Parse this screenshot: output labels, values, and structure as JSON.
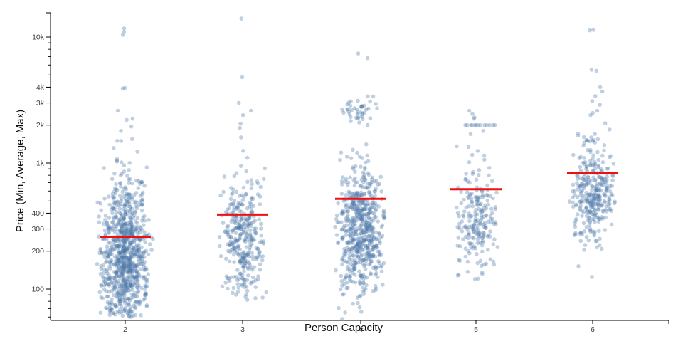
{
  "figure": {
    "background": "#ffffff"
  },
  "chart_data": {
    "type": "scatter",
    "variant": "jittered strip plot with mean rule per category",
    "title": "",
    "xlabel": "Person Capacity",
    "ylabel": "Price (Min, Average, Max)",
    "x_categories": [
      "2",
      "3",
      "4",
      "5",
      "6"
    ],
    "y_scale": "log",
    "y_domain": [
      55,
      15500
    ],
    "grid": false,
    "legend": "none",
    "point_color": "#4c78a8",
    "point_opacity": 0.35,
    "mean_line_color": "#ee1111",
    "axis_color": "#000000",
    "y_ticks": [
      {
        "value": 10000,
        "label": "10k"
      },
      {
        "value": 4000,
        "label": "4k"
      },
      {
        "value": 3000,
        "label": "3k"
      },
      {
        "value": 2000,
        "label": "2k"
      },
      {
        "value": 1000,
        "label": "1k"
      },
      {
        "value": 400,
        "label": "400"
      },
      {
        "value": 300,
        "label": "300"
      },
      {
        "value": 200,
        "label": "200"
      },
      {
        "value": 100,
        "label": "100"
      }
    ],
    "y_minor_ticks": [
      9000,
      8000,
      7000,
      6000,
      5000,
      900,
      800,
      700,
      600,
      500,
      90,
      80,
      70,
      60
    ],
    "averages": {
      "2": 260,
      "3": 390,
      "4": 520,
      "5": 620,
      "6": 830
    },
    "groups": [
      {
        "capacity": "2",
        "count": 880,
        "avg": 260,
        "approx_min": 60,
        "approx_max": 11700,
        "log_mean": 2.26,
        "log_sd": 0.295,
        "clamp": [
          60,
          1700
        ],
        "jitter_half": 40,
        "outliers": [
          11700,
          11000,
          10400,
          3950,
          3900,
          2600,
          2250,
          2200,
          1950,
          1800,
          1550,
          1500
        ],
        "band": null,
        "row_2000": 0
      },
      {
        "capacity": "3",
        "count": 335,
        "avg": 390,
        "approx_min": 80,
        "approx_max": 14000,
        "log_mean": 2.41,
        "log_sd": 0.235,
        "clamp": [
          80,
          1100
        ],
        "jitter_half": 36,
        "outliers": [
          14000,
          4800,
          3000,
          2600,
          2400,
          2050,
          1900,
          1600,
          1250,
          1100
        ],
        "band": null,
        "row_2000": 0
      },
      {
        "capacity": "4",
        "count": 600,
        "avg": 520,
        "approx_min": 57,
        "approx_max": 7400,
        "log_mean": 2.47,
        "log_sd": 0.26,
        "clamp": [
          57,
          1800
        ],
        "jitter_half": 38,
        "outliers": [
          7400,
          6800
        ],
        "band": {
          "n": 42,
          "lo": 1950,
          "hi": 3400
        },
        "row_2000": 0
      },
      {
        "capacity": "5",
        "count": 210,
        "avg": 620,
        "approx_min": 105,
        "approx_max": 2600,
        "log_mean": 2.55,
        "log_sd": 0.215,
        "clamp": [
          105,
          1500
        ],
        "jitter_half": 34,
        "outliers": [
          2600,
          2450,
          2300,
          2250,
          1800,
          1700
        ],
        "band": null,
        "row_2000": 13
      },
      {
        "capacity": "6",
        "count": 320,
        "avg": 830,
        "approx_min": 115,
        "approx_max": 11400,
        "log_mean": 2.77,
        "log_sd": 0.215,
        "clamp": [
          115,
          2300
        ],
        "jitter_half": 36,
        "outliers": [
          11400,
          11300,
          5500,
          5400,
          4000,
          3700,
          3400,
          3100,
          2900,
          2600,
          2500,
          2400,
          1700,
          1600,
          1500,
          1450
        ],
        "band": null,
        "row_2000": 0
      }
    ]
  }
}
